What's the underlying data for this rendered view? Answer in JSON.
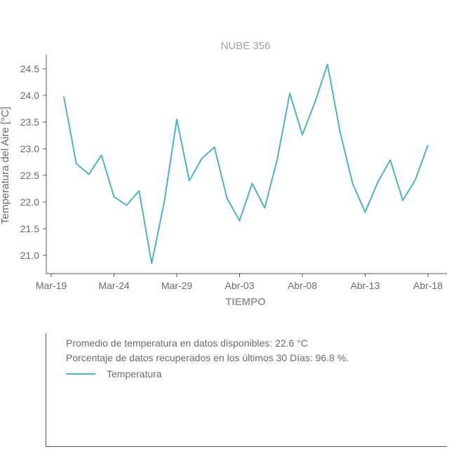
{
  "colors": {
    "series": "#4fb3bf",
    "axis": "#555555",
    "text": "#6b6b6b"
  },
  "chart_data": {
    "type": "line",
    "title": "NUBE 356",
    "xlabel": "TIEMPO",
    "ylabel": "Temperatura del Aire [°C]",
    "ylim": [
      20.7,
      24.8
    ],
    "yticks": [
      21.0,
      21.5,
      22.0,
      22.5,
      23.0,
      23.5,
      24.0,
      24.5
    ],
    "xticks": [
      "Mar-19",
      "Mar-24",
      "Mar-29",
      "Abr-03",
      "Abr-08",
      "Abr-13",
      "Abr-18"
    ],
    "x": [
      "Mar-20",
      "Mar-21",
      "Mar-22",
      "Mar-23",
      "Mar-24",
      "Mar-25",
      "Mar-26",
      "Mar-27",
      "Mar-28",
      "Mar-29",
      "Mar-30",
      "Mar-31",
      "Abr-01",
      "Abr-02",
      "Abr-03",
      "Abr-04",
      "Abr-05",
      "Abr-06",
      "Abr-07",
      "Abr-08",
      "Abr-09",
      "Abr-10",
      "Abr-11",
      "Abr-12",
      "Abr-13",
      "Abr-14",
      "Abr-15",
      "Abr-16",
      "Abr-17",
      "Abr-18"
    ],
    "series": [
      {
        "name": "Temperatura",
        "values": [
          23.98,
          22.72,
          22.52,
          22.88,
          22.1,
          21.94,
          22.21,
          20.85,
          22.0,
          23.55,
          22.4,
          22.82,
          23.03,
          22.07,
          21.65,
          22.35,
          21.89,
          22.8,
          24.04,
          23.26,
          23.87,
          24.58,
          23.32,
          22.35,
          21.81,
          22.37,
          22.79,
          22.03,
          22.42,
          23.07
        ]
      }
    ],
    "grid": false
  },
  "info": {
    "average_text": "Promedio de temperatura en datos disponibles: 22.6 °C",
    "recovered_text": "Porcentaje de datos recuperados en los últimos 30 Días: 96.8 %.",
    "legend_label": "Temperatura"
  }
}
